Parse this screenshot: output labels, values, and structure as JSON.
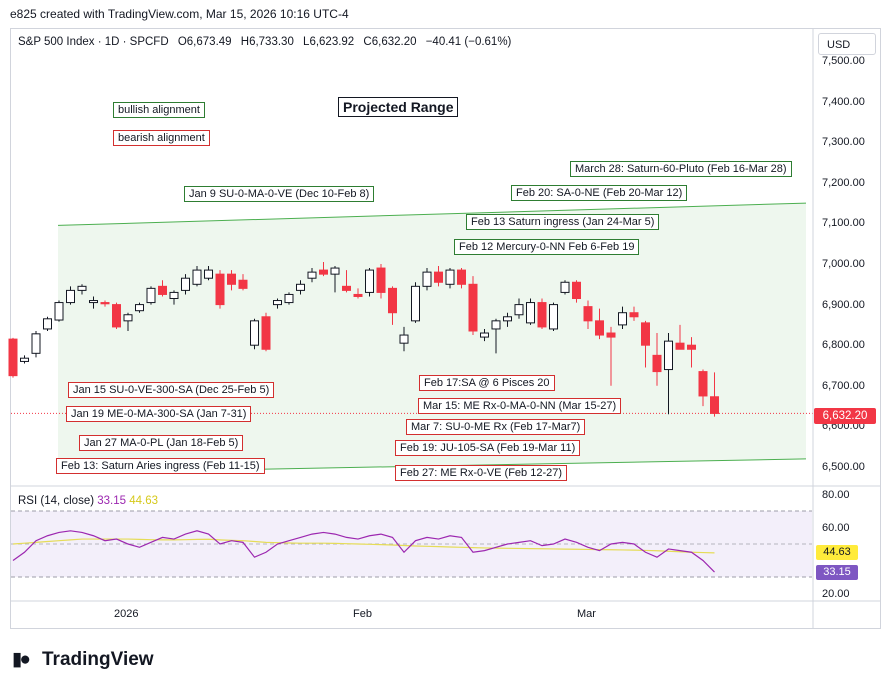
{
  "header": {
    "caption": "e825 created with TradingView.com, Mar 15, 2026 10:16 UTC-4",
    "symbol": "S&P 500 Index · 1D · SPCFD",
    "open": "O6,673.49",
    "high": "H6,733.30",
    "low": "L6,623.92",
    "close": "C6,632.20",
    "change": "−40.41 (−0.61%)",
    "currency_button": "USD"
  },
  "colors": {
    "up": "#ffffff",
    "down": "#f23645",
    "bullish": "#2e7d32",
    "bearish": "#d32f2f",
    "rsi": "#9c27b0",
    "rsi_ma": "#e5dc57",
    "channel_fill": "#eef7ee"
  },
  "chart_data": {
    "type": "candlestick",
    "title": "Projected Range",
    "ylim": [
      6480,
      7520
    ],
    "y_ticks": [
      "7,500.00",
      "7,400.00",
      "7,300.00",
      "7,200.00",
      "7,100.00",
      "7,000.00",
      "6,900.00",
      "6,800.00",
      "6,700.00",
      "6,600.00",
      "6,500.00"
    ],
    "x_labels": [
      "2026",
      "Feb",
      "Mar"
    ],
    "last_price_label": "6,632.20",
    "candles": [
      [
        6815,
        6818,
        6720,
        6725
      ],
      [
        6760,
        6775,
        6755,
        6768
      ],
      [
        6780,
        6835,
        6770,
        6828
      ],
      [
        6840,
        6870,
        6835,
        6865
      ],
      [
        6862,
        6910,
        6858,
        6905
      ],
      [
        6905,
        6945,
        6900,
        6935
      ],
      [
        6935,
        6950,
        6925,
        6945
      ],
      [
        6905,
        6920,
        6890,
        6910
      ],
      [
        6905,
        6910,
        6895,
        6902
      ],
      [
        6900,
        6905,
        6840,
        6845
      ],
      [
        6860,
        6880,
        6835,
        6875
      ],
      [
        6885,
        6905,
        6880,
        6900
      ],
      [
        6905,
        6945,
        6900,
        6940
      ],
      [
        6945,
        6960,
        6920,
        6925
      ],
      [
        6915,
        6935,
        6900,
        6930
      ],
      [
        6935,
        6975,
        6925,
        6965
      ],
      [
        6950,
        6995,
        6945,
        6985
      ],
      [
        6965,
        6995,
        6960,
        6985
      ],
      [
        6975,
        6985,
        6890,
        6900
      ],
      [
        6975,
        6985,
        6935,
        6950
      ],
      [
        6960,
        6975,
        6935,
        6940
      ],
      [
        6800,
        6865,
        6790,
        6860
      ],
      [
        6870,
        6880,
        6785,
        6790
      ],
      [
        6900,
        6915,
        6890,
        6910
      ],
      [
        6905,
        6930,
        6900,
        6925
      ],
      [
        6935,
        6960,
        6925,
        6950
      ],
      [
        6965,
        6990,
        6955,
        6980
      ],
      [
        6985,
        7005,
        6970,
        6975
      ],
      [
        6975,
        6995,
        6930,
        6990
      ],
      [
        6945,
        6985,
        6930,
        6935
      ],
      [
        6925,
        6940,
        6915,
        6920
      ],
      [
        6930,
        6990,
        6920,
        6985
      ],
      [
        6990,
        7000,
        6915,
        6930
      ],
      [
        6940,
        6945,
        6850,
        6880
      ],
      [
        6805,
        6845,
        6785,
        6825
      ],
      [
        6860,
        6955,
        6855,
        6945
      ],
      [
        6945,
        6990,
        6935,
        6980
      ],
      [
        6980,
        6995,
        6945,
        6955
      ],
      [
        6950,
        6990,
        6940,
        6985
      ],
      [
        6985,
        6990,
        6940,
        6950
      ],
      [
        6950,
        6970,
        6825,
        6835
      ],
      [
        6820,
        6840,
        6810,
        6830
      ],
      [
        6840,
        6865,
        6780,
        6860
      ],
      [
        6860,
        6880,
        6845,
        6870
      ],
      [
        6875,
        6915,
        6865,
        6900
      ],
      [
        6855,
        6915,
        6850,
        6905
      ],
      [
        6905,
        6915,
        6840,
        6845
      ],
      [
        6840,
        6905,
        6835,
        6900
      ],
      [
        6930,
        6960,
        6925,
        6955
      ],
      [
        6955,
        6960,
        6905,
        6915
      ],
      [
        6895,
        6910,
        6840,
        6860
      ],
      [
        6860,
        6890,
        6815,
        6825
      ],
      [
        6830,
        6845,
        6700,
        6820
      ],
      [
        6850,
        6895,
        6840,
        6880
      ],
      [
        6880,
        6895,
        6860,
        6870
      ],
      [
        6855,
        6860,
        6745,
        6800
      ],
      [
        6775,
        6830,
        6700,
        6735
      ],
      [
        6740,
        6830,
        6630,
        6810
      ],
      [
        6805,
        6850,
        6790,
        6790
      ],
      [
        6800,
        6820,
        6745,
        6790
      ],
      [
        6735,
        6740,
        6650,
        6675
      ],
      [
        6673,
        6733,
        6624,
        6632
      ]
    ],
    "channel": {
      "upper": [
        7095,
        7150
      ],
      "lower": [
        6485,
        6520
      ]
    },
    "annotations": {
      "legend": [
        {
          "text": "bullish alignment",
          "kind": "bullish"
        },
        {
          "text": "bearish alignment",
          "kind": "bearish"
        }
      ],
      "bullish": [
        "March 28: Saturn-60-Pluto (Feb 16-Mar 28)",
        "Jan 9 SU-0-MA-0-VE (Dec 10-Feb 8)",
        "Feb 20: SA-0-NE (Feb 20-Mar 12)",
        "Feb 13 Saturn ingress (Jan 24-Mar 5)",
        "Feb 12 Mercury-0-NN Feb 6-Feb 19"
      ],
      "bearish": [
        "Jan 15 SU-0-VE-300-SA (Dec 25-Feb 5)",
        "Jan 19 ME-0-MA-300-SA (Jan 7-31)",
        "Jan 27 MA-0-PL (Jan 18-Feb 5)",
        "Feb 13: Saturn Aries ingress (Feb 11-15)",
        "Feb 17:SA @ 6 Pisces 20",
        "Mar 15: ME Rx-0-MA-0-NN (Mar 15-27)",
        "Mar 7: SU-0-ME Rx (Feb 17-Mar7)",
        "Feb 19: JU-105-SA (Feb 19-Mar 11)",
        "Feb 27: ME Rx-0-VE (Feb 12-27)"
      ]
    },
    "rsi": {
      "label": "RSI (14, close)",
      "value": "33.15",
      "ma_value": "44.63",
      "ylim": [
        15,
        85
      ],
      "y_ticks": [
        "80.00",
        "60.00",
        "20.00"
      ],
      "values": [
        40,
        45,
        52,
        55,
        57,
        58,
        57,
        55,
        52,
        53,
        50,
        48,
        51,
        54,
        53,
        56,
        58,
        56,
        50,
        52,
        51,
        42,
        45,
        50,
        52,
        54,
        56,
        57,
        56,
        54,
        53,
        55,
        56,
        54,
        45,
        52,
        54,
        53,
        55,
        54,
        45,
        46,
        48,
        50,
        51,
        52,
        49,
        50,
        53,
        51,
        48,
        46,
        50,
        51,
        50,
        45,
        42,
        47,
        46,
        45,
        40,
        33
      ],
      "ma_values": [
        50,
        50.5,
        51,
        51.5,
        52,
        52.5,
        53,
        53,
        53,
        53,
        53,
        52.8,
        52.6,
        52.5,
        52.5,
        52.6,
        52.8,
        52.9,
        52.5,
        52.2,
        52,
        51.5,
        51,
        50.8,
        50.6,
        50.5,
        50.5,
        50.5,
        50.4,
        50.2,
        50,
        49.8,
        49.6,
        49.4,
        49.1,
        48.8,
        48.6,
        48.4,
        48.2,
        48,
        47.8,
        47.6,
        47.5,
        47.4,
        47.3,
        47.2,
        47.1,
        47,
        46.9,
        46.8,
        46.7,
        46.6,
        46.5,
        46.4,
        46.3,
        46.1,
        45.9,
        45.6,
        45.3,
        45,
        44.8,
        44.63
      ]
    }
  }
}
